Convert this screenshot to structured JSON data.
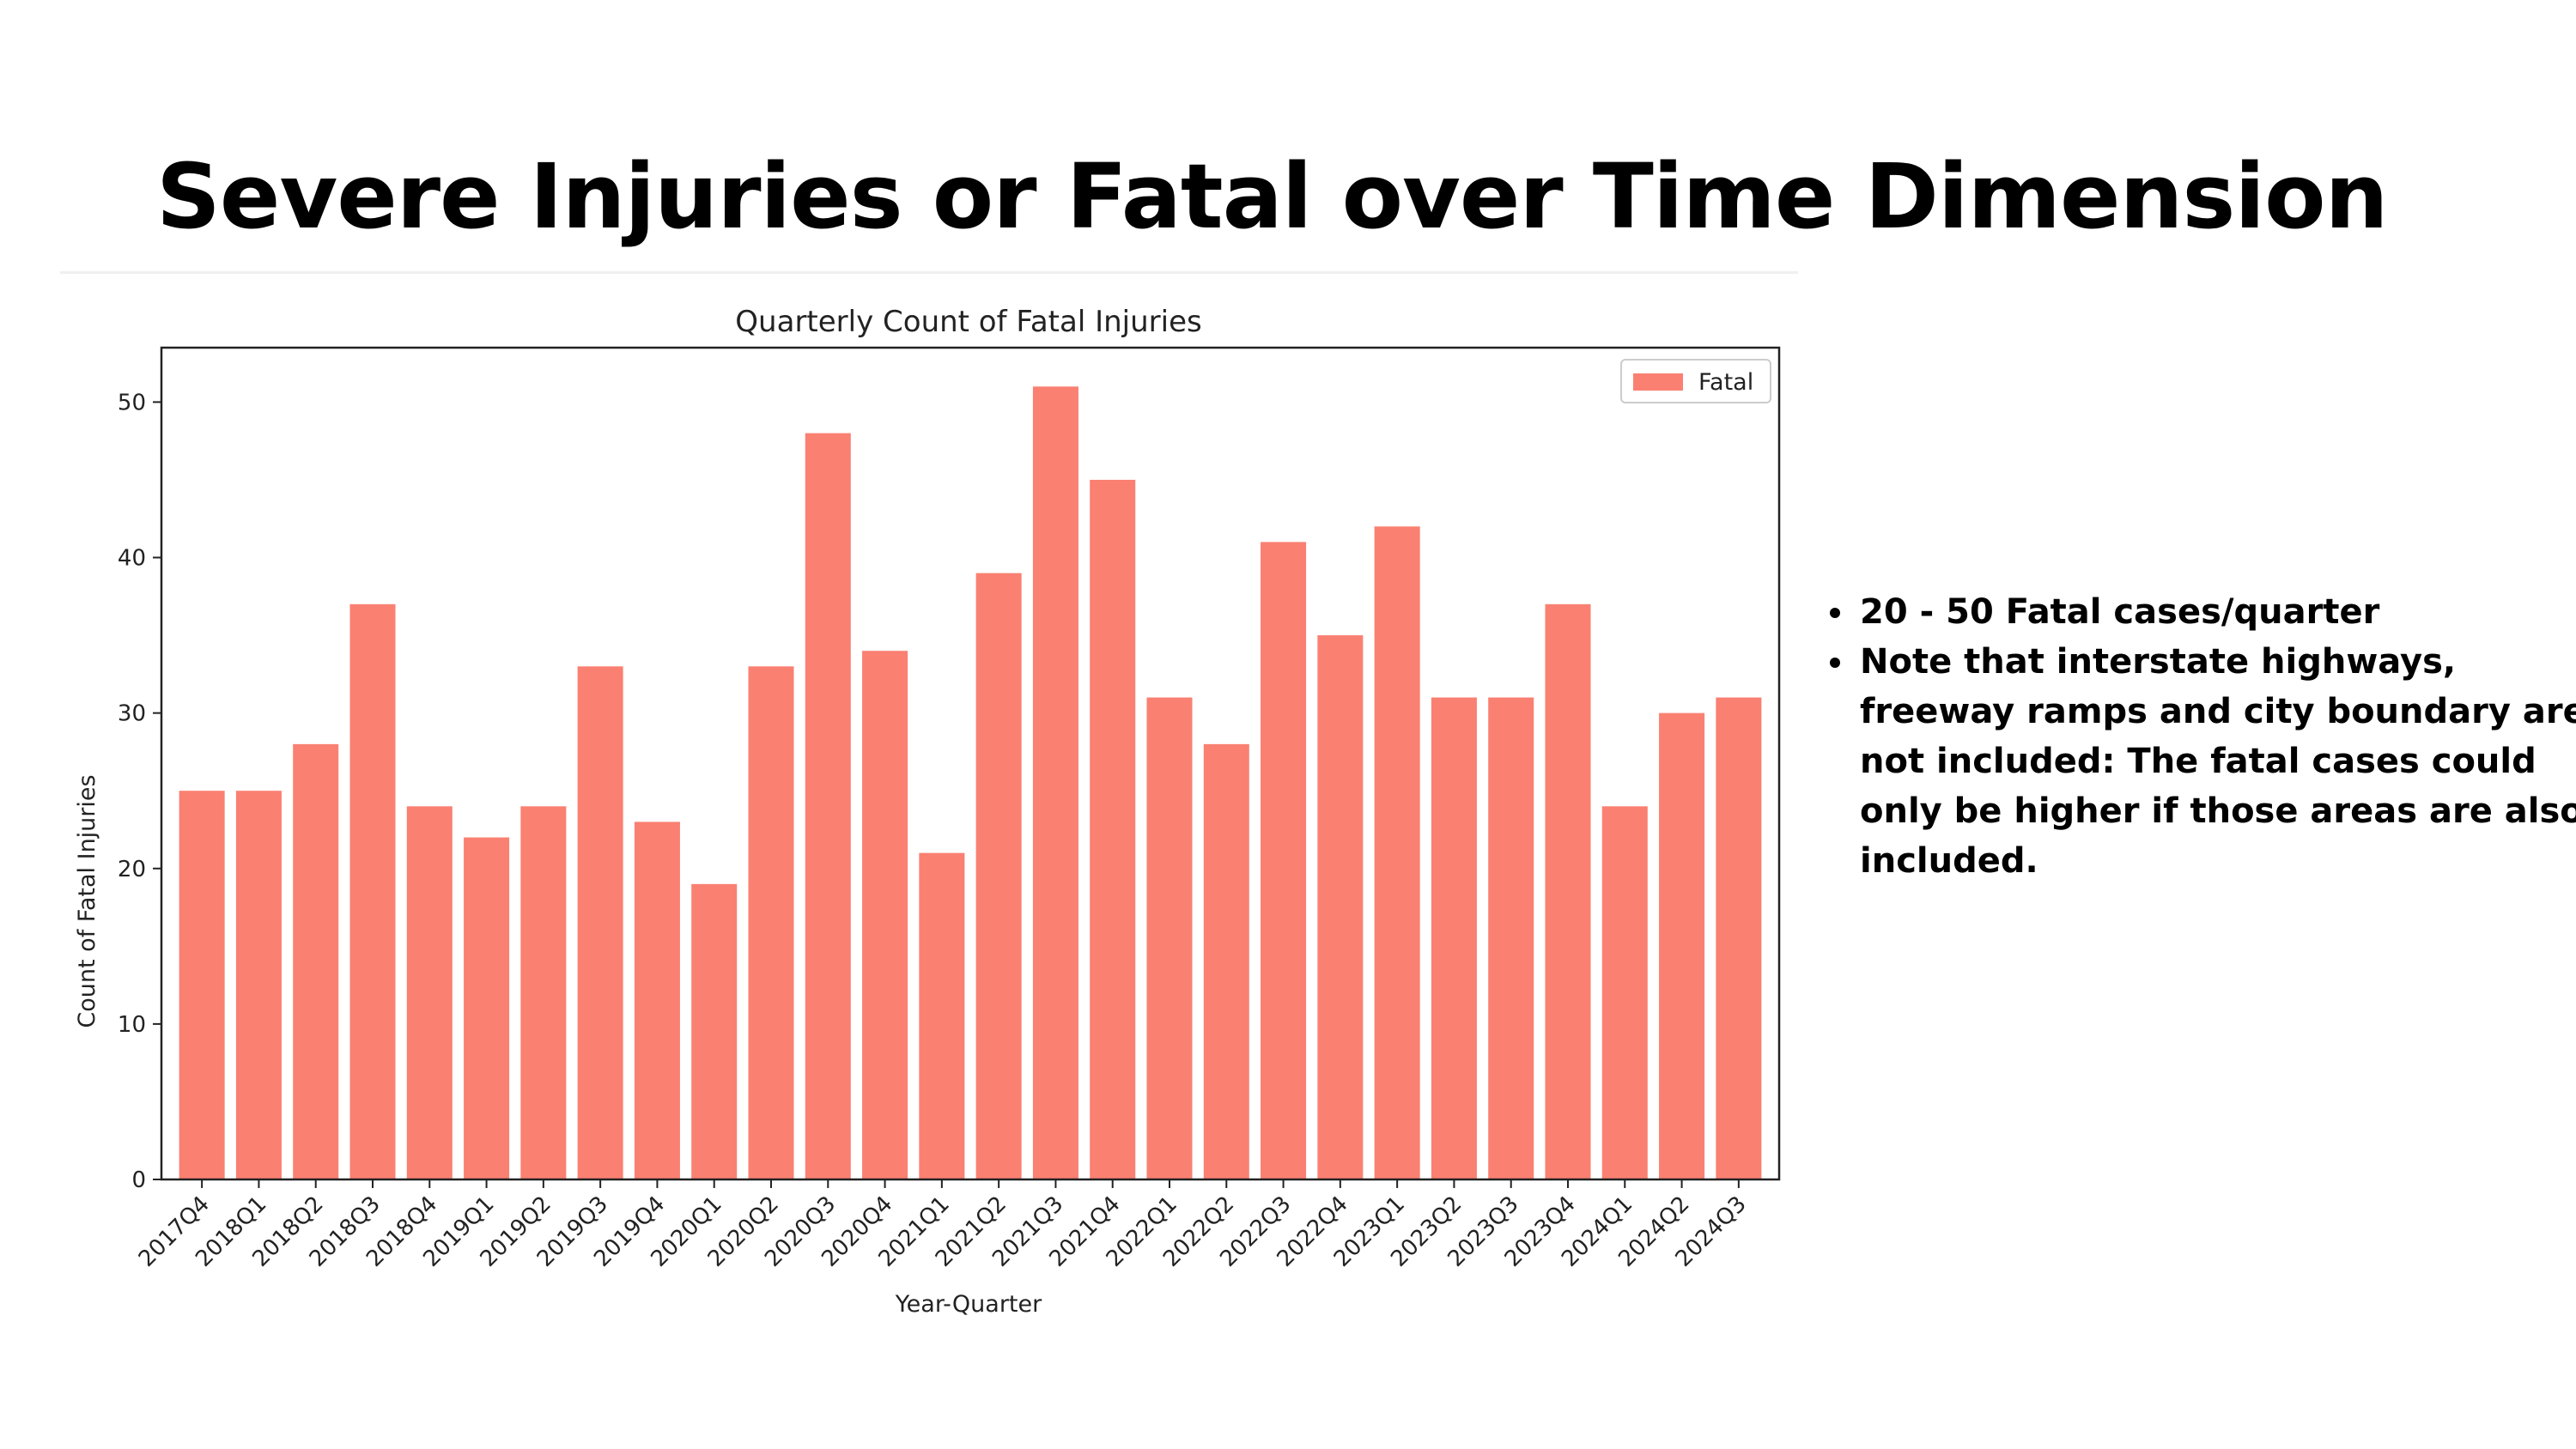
{
  "slide": {
    "title": "Severe Injuries or Fatal over Time Dimension"
  },
  "notes": [
    "20 - 50 Fatal cases/quarter",
    "Note that interstate highways, freeway ramps and city boundary are not included: The fatal cases could only be higher if those areas are also included."
  ],
  "chart_data": {
    "type": "bar",
    "title": "Quarterly Count of Fatal Injuries",
    "xlabel": "Year-Quarter",
    "ylabel": "Count of Fatal Injuries",
    "categories": [
      "2017Q4",
      "2018Q1",
      "2018Q2",
      "2018Q3",
      "2018Q4",
      "2019Q1",
      "2019Q2",
      "2019Q3",
      "2019Q4",
      "2020Q1",
      "2020Q2",
      "2020Q3",
      "2020Q4",
      "2021Q1",
      "2021Q2",
      "2021Q3",
      "2021Q4",
      "2022Q1",
      "2022Q2",
      "2022Q3",
      "2022Q4",
      "2023Q1",
      "2023Q2",
      "2023Q3",
      "2023Q4",
      "2024Q1",
      "2024Q2",
      "2024Q3"
    ],
    "series": [
      {
        "name": "Fatal",
        "color": "#fa8072",
        "values": [
          25,
          25,
          28,
          37,
          24,
          22,
          24,
          33,
          23,
          19,
          33,
          48,
          34,
          21,
          39,
          51,
          45,
          31,
          28,
          41,
          35,
          42,
          31,
          31,
          37,
          24,
          30,
          31
        ]
      }
    ],
    "ylim": [
      0,
      53.5
    ],
    "yticks": [
      0,
      10,
      20,
      30,
      40,
      50
    ],
    "legend_position": "top-right",
    "grid": false
  }
}
